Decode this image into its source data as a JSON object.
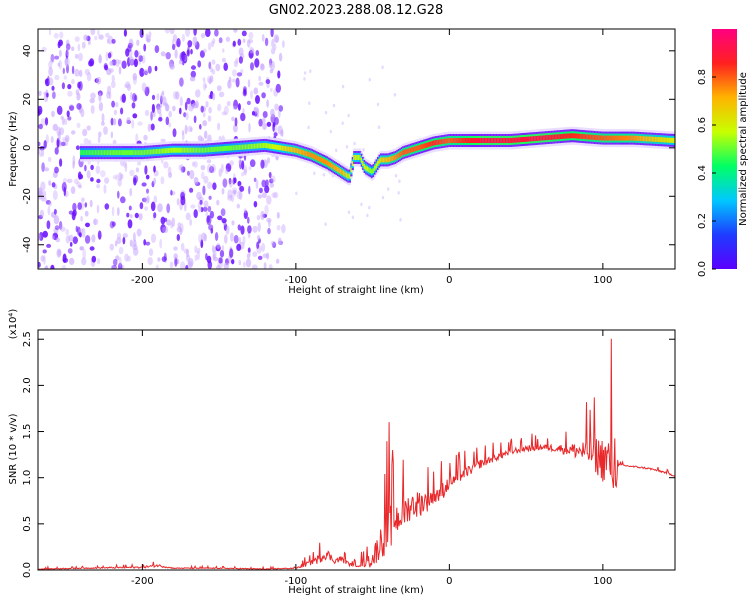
{
  "title": "GN02.2023.288.08.12.G28",
  "colormap": [
    "#5a00ff",
    "#1e3cff",
    "#00c8ff",
    "#00ff64",
    "#c8ff00",
    "#ffb400",
    "#ff2020",
    "#ff0080"
  ],
  "chart_data": [
    {
      "type": "heatmap",
      "xlabel": "Height of straight line (km)",
      "ylabel": "Frequency (Hz)",
      "xlim": [
        -268,
        147
      ],
      "ylim": [
        -50,
        49
      ],
      "x_ticks": [
        -200,
        -100,
        0,
        100
      ],
      "y_ticks": [
        -40,
        -20,
        0,
        20,
        40
      ],
      "colorbar": {
        "label": "Normalized spectral amplitude",
        "range": [
          0,
          1
        ],
        "ticks": [
          "0.0",
          "0.2",
          "0.4",
          "0.6",
          "0.8"
        ]
      },
      "ridge": {
        "x": [
          -240,
          -220,
          -200,
          -180,
          -160,
          -140,
          -120,
          -110,
          -100,
          -90,
          -80,
          -70,
          -65,
          -62,
          -58,
          -55,
          -50,
          -45,
          -40,
          -35,
          -30,
          -20,
          -10,
          0,
          20,
          40,
          60,
          80,
          100,
          120,
          147
        ],
        "freq": [
          -2,
          -2,
          -2,
          -1,
          -1,
          0,
          1,
          0,
          -1,
          -3,
          -6,
          -10,
          -12,
          -4,
          -4,
          -8,
          -10,
          -5,
          -5,
          -4,
          -2,
          0,
          2,
          3,
          3,
          3,
          4,
          5,
          4,
          4,
          3
        ],
        "amp": [
          0.45,
          0.5,
          0.5,
          0.55,
          0.5,
          0.5,
          0.55,
          0.6,
          0.7,
          0.75,
          0.75,
          0.7,
          0.55,
          0.6,
          0.55,
          0.6,
          0.5,
          0.65,
          0.7,
          0.75,
          0.8,
          0.8,
          0.85,
          0.8,
          0.9,
          0.9,
          0.9,
          0.85,
          0.8,
          0.75,
          0.6
        ]
      }
    },
    {
      "type": "line",
      "xlabel": "Height of straight line (km)",
      "ylabel": "SNR (10 * v/v)",
      "y_scale_label": "(x10⁴)",
      "xlim": [
        -268,
        147
      ],
      "ylim": [
        0,
        2.6
      ],
      "x_ticks": [
        -200,
        -100,
        0,
        100
      ],
      "y_ticks": [
        "0.0",
        "0.5",
        "1.0",
        "1.5",
        "2.0",
        "2.5"
      ],
      "color": "#e8282a",
      "series": [
        {
          "x": [
            -268,
            -240,
            -200,
            -190,
            -180,
            -150,
            -120,
            -100,
            -95,
            -85,
            -80,
            -75,
            -70,
            -65,
            -60,
            -55,
            -50,
            -45,
            -40,
            -35,
            -30,
            -25,
            -20,
            -15,
            -10,
            -5,
            0,
            10,
            20,
            30,
            40,
            50,
            60,
            70,
            80,
            90,
            95,
            100,
            105,
            108,
            110,
            120,
            130,
            140,
            147
          ],
          "y": [
            0.01,
            0.02,
            0.03,
            0.05,
            0.02,
            0.02,
            0.01,
            0.02,
            0.05,
            0.12,
            0.18,
            0.1,
            0.12,
            0.06,
            0.05,
            0.08,
            0.12,
            0.3,
            0.45,
            0.55,
            0.62,
            0.7,
            0.72,
            0.75,
            0.8,
            0.85,
            0.95,
            1.05,
            1.15,
            1.22,
            1.28,
            1.32,
            1.33,
            1.32,
            1.3,
            1.28,
            1.25,
            1.2,
            1.18,
            1.15,
            1.14,
            1.12,
            1.1,
            1.06,
            1.02
          ],
          "spread": [
            0.01,
            0.01,
            0.02,
            0.03,
            0.01,
            0.01,
            0.01,
            0.01,
            0.04,
            0.1,
            0.12,
            0.06,
            0.08,
            0.03,
            0.03,
            0.1,
            0.2,
            0.35,
            0.55,
            0.4,
            0.35,
            0.3,
            0.3,
            0.25,
            0.22,
            0.2,
            0.15,
            0.12,
            0.1,
            0.08,
            0.07,
            0.07,
            0.07,
            0.08,
            0.15,
            0.28,
            0.4,
            0.5,
            0.6,
            0.85,
            0.02,
            0.02,
            0.02,
            0.02,
            0.02
          ]
        }
      ]
    }
  ]
}
